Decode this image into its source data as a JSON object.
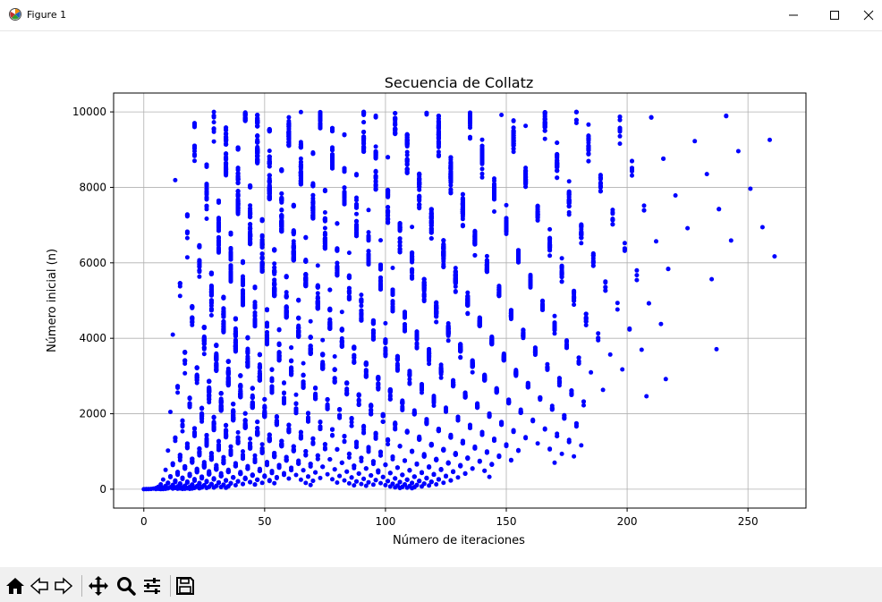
{
  "window": {
    "title": "Figure 1",
    "icons": {
      "app": "matplotlib-icon",
      "minimize": "minimize-icon",
      "maximize": "maximize-icon",
      "close": "close-icon"
    }
  },
  "toolbar": {
    "buttons": [
      "home-icon",
      "back-arrow-icon",
      "forward-arrow-icon",
      "pan-icon",
      "zoom-icon",
      "configure-subplots-icon",
      "save-icon"
    ]
  },
  "colors": {
    "marker": "#0000ff",
    "grid": "#b0b0b0",
    "toolbar_bg": "#f0f0f0"
  },
  "chart_data": {
    "type": "scatter",
    "title": "Secuencia de Collatz",
    "xlabel": "Número de iteraciones",
    "ylabel": "Número inicial (n)",
    "xlim": [
      -12.5,
      274
    ],
    "ylim": [
      -500,
      10500
    ],
    "xticks": [
      0,
      50,
      100,
      150,
      200,
      250
    ],
    "xtick_labels": [
      "0",
      "50",
      "100",
      "150",
      "200",
      "250"
    ],
    "yticks": [
      0,
      2000,
      4000,
      6000,
      8000,
      10000
    ],
    "ytick_labels": [
      "0",
      "2000",
      "4000",
      "6000",
      "8000",
      "10000"
    ],
    "grid": true,
    "marker_color": "#0000ff",
    "series": [
      {
        "n_range": [
          1,
          10000
        ],
        "description_points": "total stopping time (iterations to reach 1) of each n from 1 to 10000"
      }
    ]
  }
}
